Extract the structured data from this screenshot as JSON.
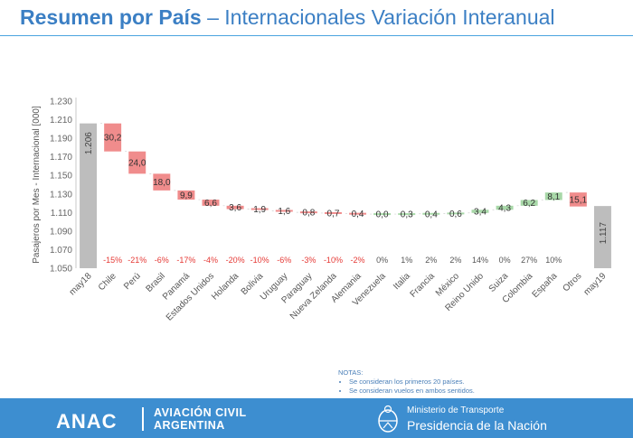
{
  "title": {
    "bold": "Resumen por País",
    "rest": " – Internacionales Variación Interanual"
  },
  "chart_data": {
    "type": "waterfall",
    "ylabel": "Pasajeros por Mes - Internacional [000]",
    "ylim": [
      1050,
      1230
    ],
    "yticks": [
      1050,
      1070,
      1090,
      1110,
      1130,
      1150,
      1170,
      1190,
      1210,
      1230
    ],
    "ytick_labels": [
      "1.050",
      "1.070",
      "1.090",
      "1.110",
      "1.130",
      "1.150",
      "1.170",
      "1.190",
      "1.210",
      "1.230"
    ],
    "start": {
      "label": "may18",
      "value": 1206,
      "text": "1.206"
    },
    "end": {
      "label": "may19",
      "value": 1117,
      "text": "1.117"
    },
    "steps": [
      {
        "label": "Chile",
        "delta": -30.2,
        "text": "30,2",
        "pct": "-15%"
      },
      {
        "label": "Perú",
        "delta": -24.0,
        "text": "24,0",
        "pct": "-21%"
      },
      {
        "label": "Brasil",
        "delta": -18.0,
        "text": "18,0",
        "pct": "-6%"
      },
      {
        "label": "Panamá",
        "delta": -9.9,
        "text": "9,9",
        "pct": "-17%"
      },
      {
        "label": "Estados Unidos",
        "delta": -6.6,
        "text": "6,6",
        "pct": "-4%"
      },
      {
        "label": "Holanda",
        "delta": -3.6,
        "text": "3,6",
        "pct": "-20%"
      },
      {
        "label": "Bolivia",
        "delta": -1.9,
        "text": "1,9",
        "pct": "-10%"
      },
      {
        "label": "Uruguay",
        "delta": -1.6,
        "text": "1,6",
        "pct": "-6%"
      },
      {
        "label": "Paraguay",
        "delta": -0.8,
        "text": "0,8",
        "pct": "-3%"
      },
      {
        "label": "Nueva Zelanda",
        "delta": -0.7,
        "text": "0,7",
        "pct": "-10%"
      },
      {
        "label": "Alemania",
        "delta": -0.4,
        "text": "0,4",
        "pct": "-2%"
      },
      {
        "label": "Venezuela",
        "delta": 0.0,
        "text": "0,0",
        "pct": "0%"
      },
      {
        "label": "Italia",
        "delta": 0.3,
        "text": "0,3",
        "pct": "1%"
      },
      {
        "label": "Francia",
        "delta": 0.4,
        "text": "0,4",
        "pct": "2%"
      },
      {
        "label": "México",
        "delta": 0.6,
        "text": "0,6",
        "pct": "2%"
      },
      {
        "label": "Reino Unido",
        "delta": 3.4,
        "text": "3,4",
        "pct": "14%"
      },
      {
        "label": "Suiza",
        "delta": 4.3,
        "text": "4,3",
        "pct": "0%"
      },
      {
        "label": "Colombia",
        "delta": 6.2,
        "text": "6,2",
        "pct": "27%"
      },
      {
        "label": "España",
        "delta": 8.1,
        "text": "8,1",
        "pct": "10%"
      },
      {
        "label": "Otros",
        "delta": -15.1,
        "text": "15,1",
        "pct": ""
      }
    ],
    "colors": {
      "total": "#bdbdbd",
      "decrease": "#f08c8c",
      "increase": "#a8d8a8",
      "negative_text": "#e53935",
      "positive_text": "#555555"
    }
  },
  "notes": {
    "heading": "NOTAS:",
    "items": [
      "Se consideran los primeros 20 países.",
      "Se consideran vuelos en ambos sentidos."
    ]
  },
  "footer": {
    "left_logo": "ANAC",
    "left_line1": "AVIACIÓN CIVIL",
    "left_line2": "ARGENTINA",
    "right_line1": "Ministerio de Transporte",
    "right_line2": "Presidencia de la Nación"
  }
}
